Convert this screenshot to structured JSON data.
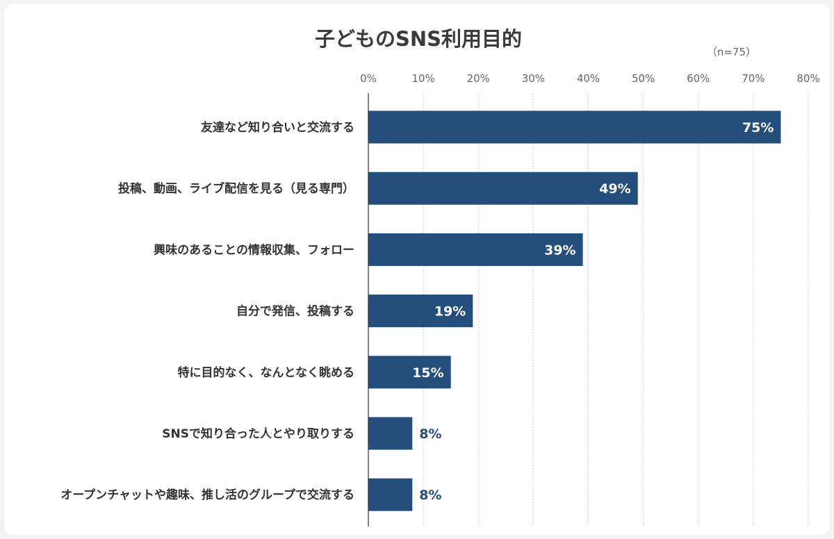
{
  "chart_data": {
    "type": "bar",
    "orientation": "horizontal",
    "title": "子どものSNS利用目的",
    "note": "（n=75）",
    "categories": [
      "友達など知り合いと交流する",
      "投稿、動画、ライブ配信を見る（見る専門）",
      "興味のあることの情報収集、フォロー",
      "自分で発信、投稿する",
      "特に目的なく、なんとなく眺める",
      "SNSで知り合った人とやり取りする",
      "オープンチャットや趣味、推し活のグループで交流する"
    ],
    "values": [
      75,
      49,
      39,
      19,
      15,
      8,
      8
    ],
    "value_labels": [
      "75%",
      "49%",
      "39%",
      "19%",
      "15%",
      "8%",
      "8%"
    ],
    "x_ticks": [
      "0%",
      "10%",
      "20%",
      "30%",
      "40%",
      "50%",
      "60%",
      "70%",
      "80%"
    ],
    "xlim": [
      0,
      80
    ],
    "grid": true,
    "colors": {
      "bar": "#244e7b",
      "label_inside": "#ffffff",
      "label_outside": "#244e7b",
      "grid": "#c9cedd"
    }
  }
}
